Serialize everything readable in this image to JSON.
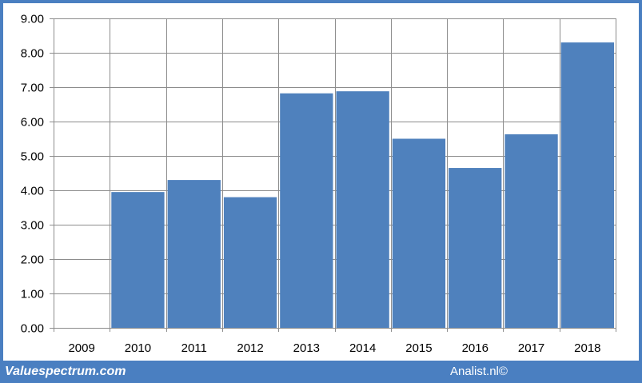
{
  "chart_data": {
    "type": "bar",
    "categories": [
      "2009",
      "2010",
      "2011",
      "2012",
      "2013",
      "2014",
      "2015",
      "2016",
      "2017",
      "2018"
    ],
    "values": [
      null,
      3.95,
      4.3,
      3.8,
      6.82,
      6.88,
      5.5,
      4.65,
      5.63,
      8.3
    ],
    "yticks": [
      "0.00",
      "1.00",
      "2.00",
      "3.00",
      "4.00",
      "5.00",
      "6.00",
      "7.00",
      "8.00",
      "9.00"
    ],
    "ylim": [
      0,
      9
    ],
    "grid": true,
    "colors": {
      "bar": "#4f81bd",
      "grid": "#8c8c8c",
      "frame": "#4a7fc1"
    }
  },
  "footer": {
    "source": "Valuespectrum.com",
    "credit": "Analist.nl©"
  }
}
